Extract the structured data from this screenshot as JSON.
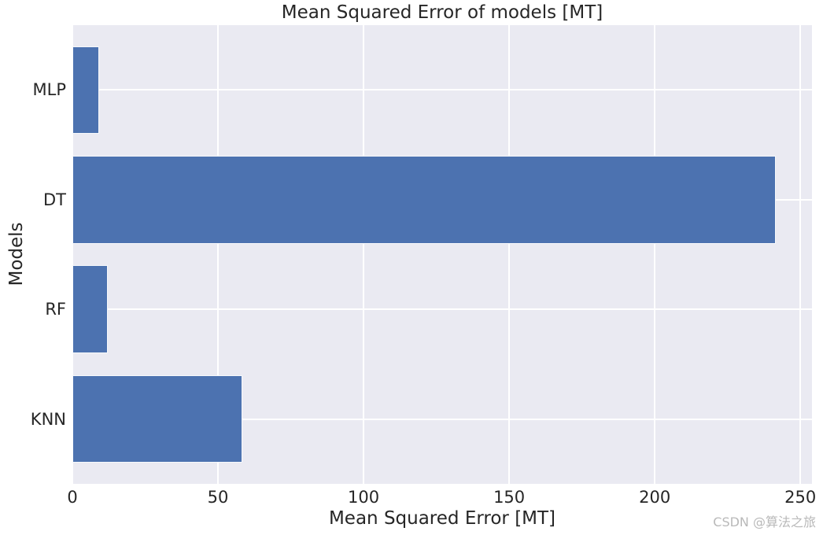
{
  "chart_data": {
    "type": "bar",
    "orientation": "horizontal",
    "title": "Mean Squared Error of models [MT]",
    "xlabel": "Mean Squared Error [MT]",
    "ylabel": "Models",
    "categories": [
      "MLP",
      "DT",
      "RF",
      "KNN"
    ],
    "values": [
      9.2,
      241.6,
      12.2,
      58.3
    ],
    "xticks": [
      0,
      50,
      100,
      150,
      200,
      250
    ],
    "xlim": [
      0,
      254
    ],
    "grid": true,
    "legend": false,
    "bar_color": "#4c72b0",
    "plot_bg": "#eaeaf2",
    "grid_color": "#ffffff",
    "text_color": "#262626"
  },
  "watermark": {
    "text": "CSDN @算法之旅",
    "color": "#b9b9b9"
  }
}
